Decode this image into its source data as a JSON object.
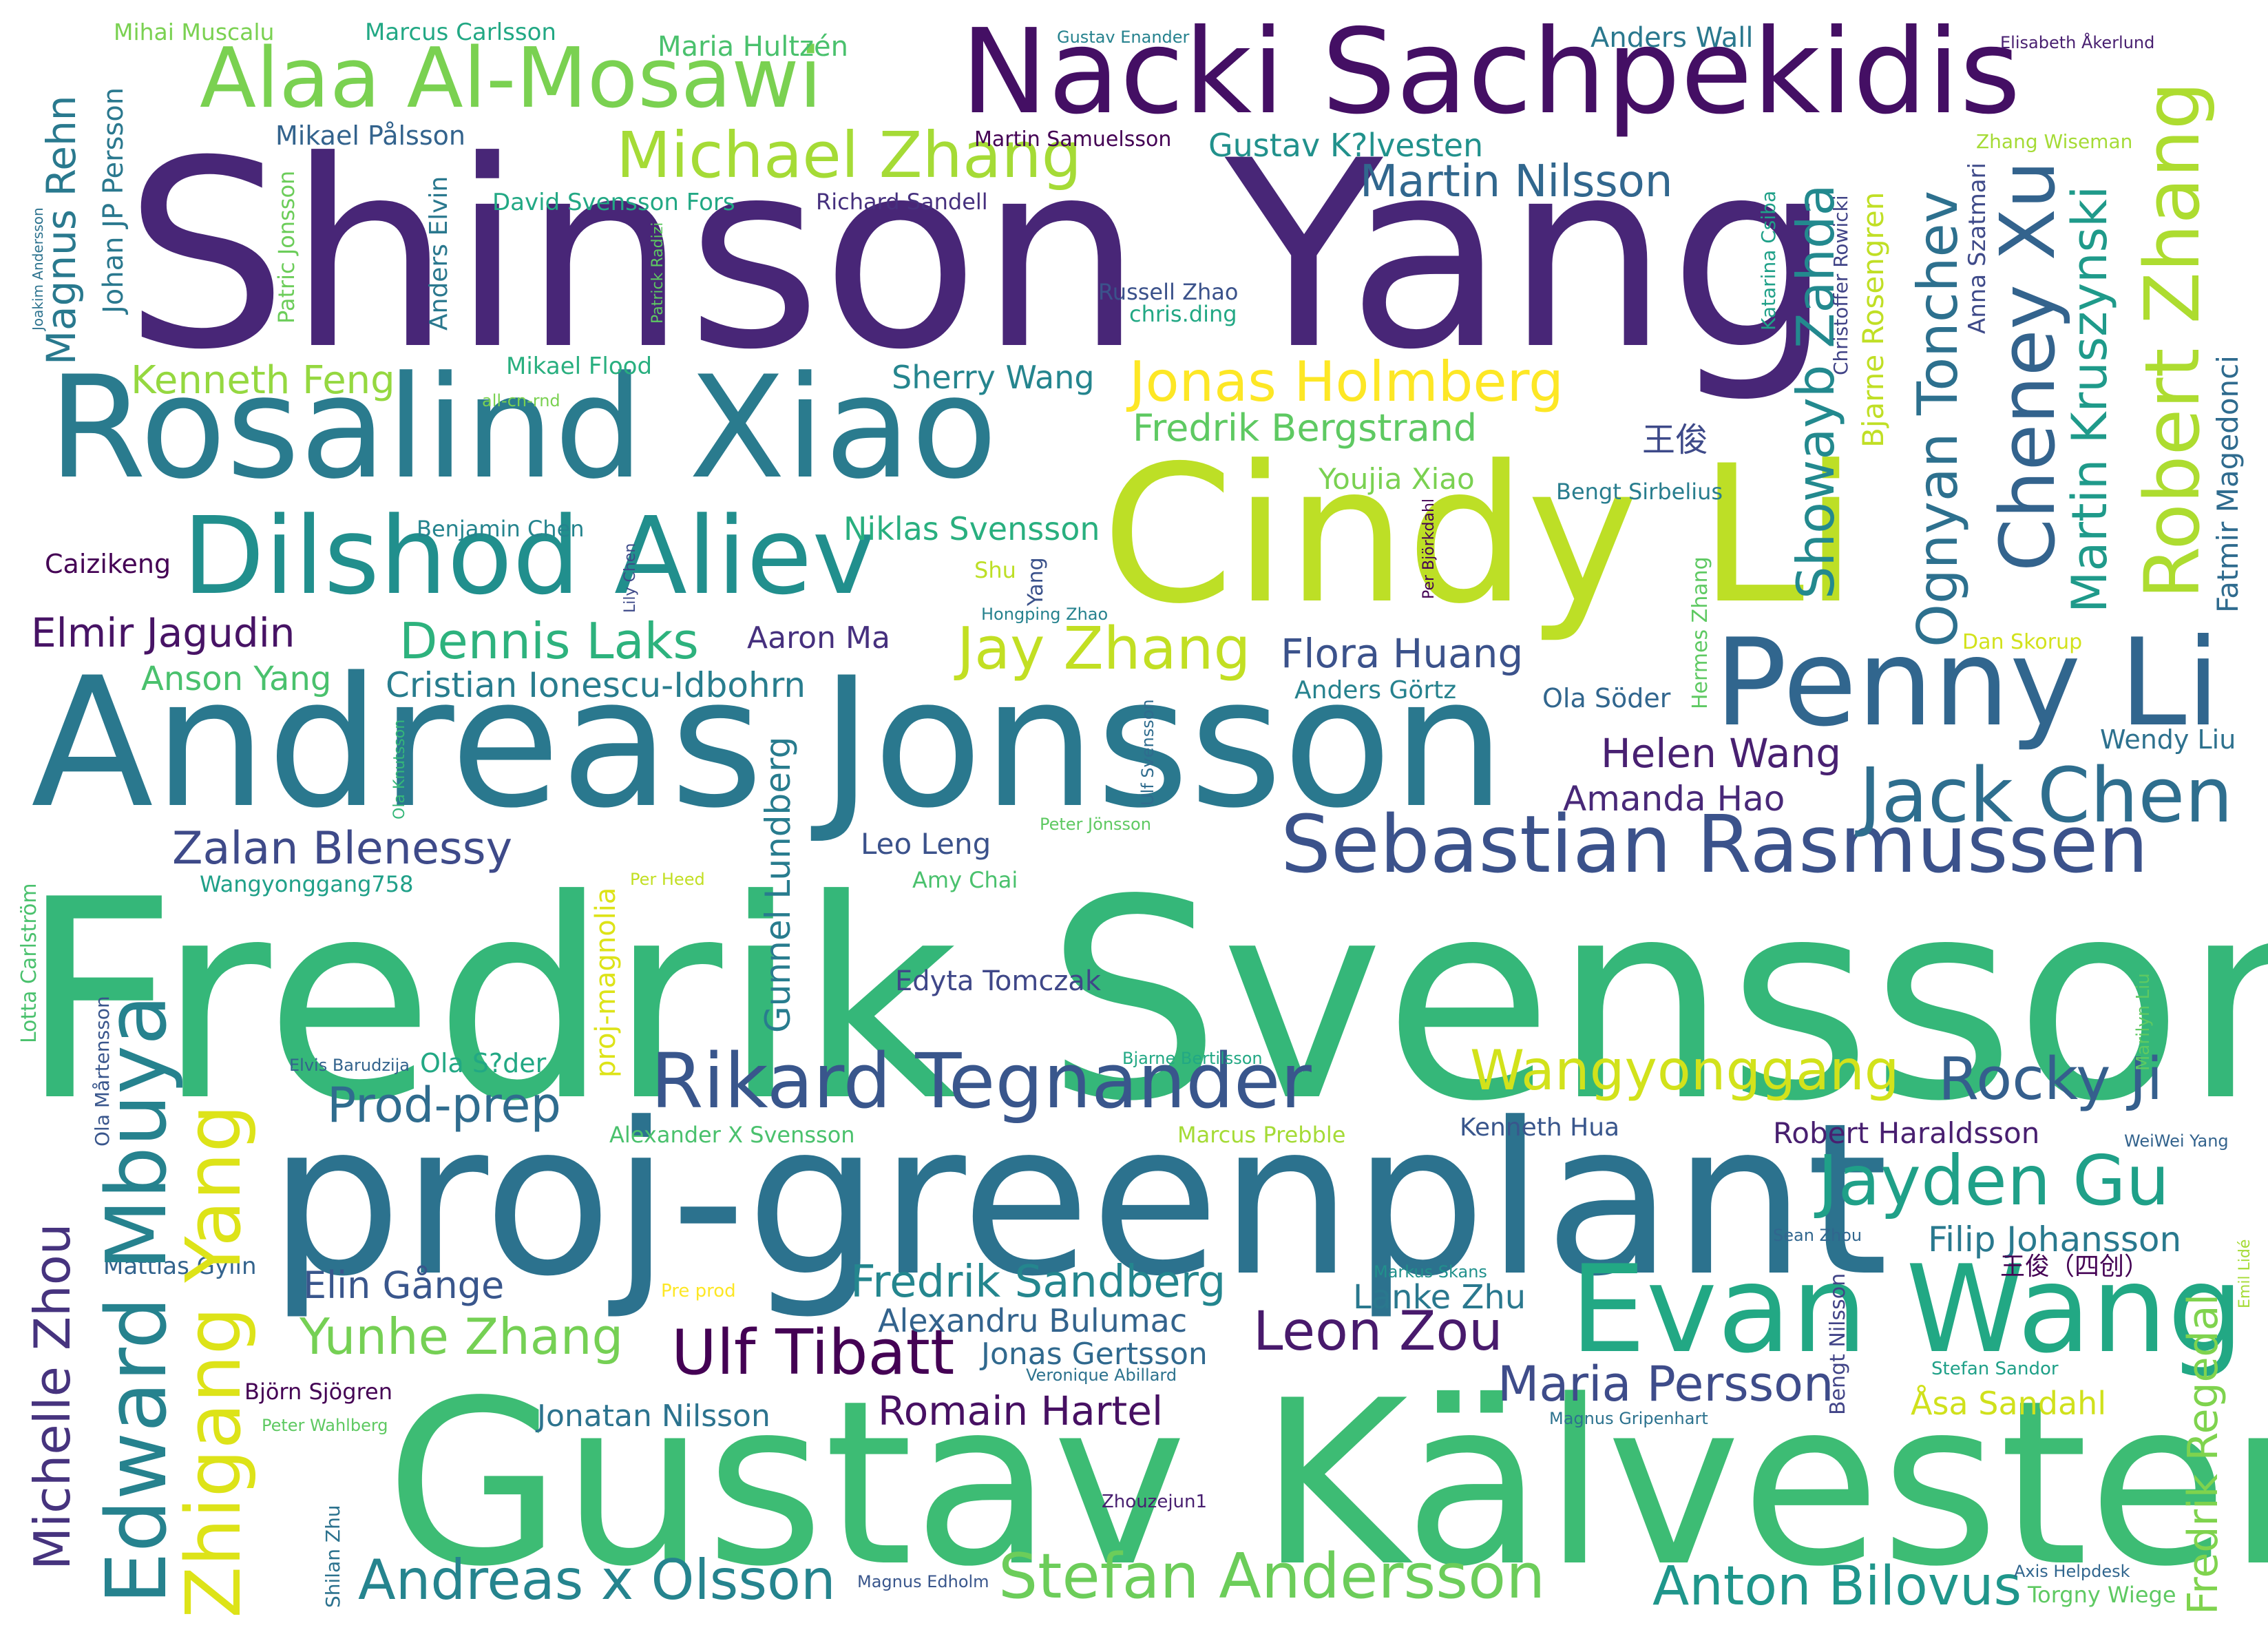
{
  "words": [
    {
      "text": "Fredrik Svensson",
      "weight": 100,
      "color": "#35b779",
      "vertical": false
    },
    {
      "text": "Shinson Yang",
      "weight": 98,
      "color": "#482677",
      "vertical": false
    },
    {
      "text": "Gustav Kälvesten",
      "weight": 97,
      "color": "#3dbc74",
      "vertical": false
    },
    {
      "text": "proj-greenplant",
      "weight": 96,
      "color": "#2c728e",
      "vertical": false
    },
    {
      "text": "Andreas Jonsson",
      "weight": 95,
      "color": "#2a788e",
      "vertical": false
    },
    {
      "text": "Cindy Li",
      "weight": 94,
      "color": "#bddf26",
      "vertical": false
    },
    {
      "text": "Rosalind Xiao",
      "weight": 93,
      "color": "#2a7b8e",
      "vertical": false
    },
    {
      "text": "Nacki Sachpekidis",
      "weight": 90,
      "color": "#440f64",
      "vertical": false
    },
    {
      "text": "Evan Wang",
      "weight": 89,
      "color": "#22a884",
      "vertical": false
    },
    {
      "text": "Penny Li",
      "weight": 88,
      "color": "#31668e",
      "vertical": false
    },
    {
      "text": "Dilshod Aliev",
      "weight": 86,
      "color": "#218f8d",
      "vertical": false
    },
    {
      "text": "Sebastian Rasmussen",
      "weight": 84,
      "color": "#3b528b",
      "vertical": false
    },
    {
      "text": "Rikard Tegnander",
      "weight": 82,
      "color": "#39568c",
      "vertical": false
    },
    {
      "text": "Alaa Al-Mosawi",
      "weight": 81,
      "color": "#7ad151",
      "vertical": false
    },
    {
      "text": "Edward Mbuya",
      "weight": 80,
      "color": "#26828e",
      "vertical": true
    },
    {
      "text": "Zhigang Yang",
      "weight": 79,
      "color": "#dde318",
      "vertical": true
    },
    {
      "text": "Jack Chen",
      "weight": 78,
      "color": "#2e6e8e",
      "vertical": false
    },
    {
      "text": "Robert Zhang",
      "weight": 77,
      "color": "#addc30",
      "vertical": true
    },
    {
      "text": "Cheney Xu",
      "weight": 76,
      "color": "#33638d",
      "vertical": true
    },
    {
      "text": "Jayden Gu",
      "weight": 75,
      "color": "#1fa088",
      "vertical": false
    },
    {
      "text": "Ulf Tibatt",
      "weight": 74,
      "color": "#440154",
      "vertical": false
    },
    {
      "text": "Michael Zhang",
      "weight": 73,
      "color": "#a5db36",
      "vertical": false
    },
    {
      "text": "Stefan Andersson",
      "weight": 72,
      "color": "#6ccd5a",
      "vertical": false
    },
    {
      "text": "Michelle Zhou",
      "weight": 71,
      "color": "#46337e",
      "vertical": true
    },
    {
      "text": "Rocky Ji",
      "weight": 70,
      "color": "#355f8d",
      "vertical": false
    },
    {
      "text": "Ognyan Tonchev",
      "weight": 69,
      "color": "#2d708e",
      "vertical": true
    },
    {
      "text": "Jay Zhang",
      "weight": 68,
      "color": "#c2df23",
      "vertical": false
    },
    {
      "text": "Wangyonggang",
      "weight": 67,
      "color": "#d2e21b",
      "vertical": false
    },
    {
      "text": "Jonas Holmberg",
      "weight": 66,
      "color": "#fde725",
      "vertical": false
    },
    {
      "text": "Showayb Zahda",
      "weight": 65,
      "color": "#23898e",
      "vertical": true
    },
    {
      "text": "Leon Zou",
      "weight": 64,
      "color": "#481a6c",
      "vertical": false
    },
    {
      "text": "Andreas x Olsson",
      "weight": 63,
      "color": "#25848e",
      "vertical": false
    },
    {
      "text": "Anton Bilovus",
      "weight": 62,
      "color": "#1f968b",
      "vertical": false
    },
    {
      "text": "Martin Kruszynski",
      "weight": 61,
      "color": "#1f9a8a",
      "vertical": true
    },
    {
      "text": "Yunhe Zhang",
      "weight": 60,
      "color": "#75d054",
      "vertical": false
    },
    {
      "text": "Dennis Laks",
      "weight": 59,
      "color": "#2db27d",
      "vertical": false
    },
    {
      "text": "Fredrik Sandberg",
      "weight": 58,
      "color": "#24868e",
      "vertical": false
    },
    {
      "text": "Maria Persson",
      "weight": 57,
      "color": "#3e4c8a",
      "vertical": false
    },
    {
      "text": "Martin Nilsson",
      "weight": 56,
      "color": "#31678e",
      "vertical": false
    },
    {
      "text": "Zalan Blenessy",
      "weight": 55,
      "color": "#3e4a89",
      "vertical": false
    },
    {
      "text": "Romain Hartel",
      "weight": 54,
      "color": "#471063",
      "vertical": false
    },
    {
      "text": "Prod-prep",
      "weight": 53,
      "color": "#2f6c8e",
      "vertical": false
    },
    {
      "text": "Fredrik Regedal",
      "weight": 52,
      "color": "#7fd34e",
      "vertical": true
    },
    {
      "text": "Gunnel Lundberg",
      "weight": 51,
      "color": "#287c8e",
      "vertical": true
    },
    {
      "text": "Fredrik Bergstrand",
      "weight": 50,
      "color": "#5ec962",
      "vertical": false
    },
    {
      "text": "Helen Wang",
      "weight": 49,
      "color": "#482071",
      "vertical": false
    },
    {
      "text": "Elmir Jagudin",
      "weight": 48,
      "color": "#471365",
      "vertical": false
    },
    {
      "text": "Flora Huang",
      "weight": 47,
      "color": "#3b528b",
      "vertical": false
    },
    {
      "text": "Kenneth Feng",
      "weight": 46,
      "color": "#95d840",
      "vertical": false
    },
    {
      "text": "Magnus Rehn",
      "weight": 45,
      "color": "#29798e",
      "vertical": true
    },
    {
      "text": "Amanda Hao",
      "weight": 44,
      "color": "#482878",
      "vertical": false
    },
    {
      "text": "Elin Gånge",
      "weight": 43,
      "color": "#39568c",
      "vertical": false
    },
    {
      "text": "Cristian Ionescu-Idbohrn",
      "weight": 42,
      "color": "#287d8e",
      "vertical": false
    },
    {
      "text": "Gustav K?lvesten",
      "weight": 41,
      "color": "#21918c",
      "vertical": false
    },
    {
      "text": "Filip Johansson",
      "weight": 40,
      "color": "#29798e",
      "vertical": false
    },
    {
      "text": "Anson Yang",
      "weight": 39,
      "color": "#4ac16d",
      "vertical": false
    },
    {
      "text": "Niklas Svensson",
      "weight": 38,
      "color": "#29af7f",
      "vertical": false
    },
    {
      "text": "Lanke Zhu",
      "weight": 37,
      "color": "#2a788e",
      "vertical": false
    },
    {
      "text": "Alexandru Bulumac",
      "weight": 36,
      "color": "#33638d",
      "vertical": false
    },
    {
      "text": "Jonatan Nilsson",
      "weight": 35,
      "color": "#2c738e",
      "vertical": false
    },
    {
      "text": "Åsa Sandahl",
      "weight": 34,
      "color": "#d0e11c",
      "vertical": false
    },
    {
      "text": "Sherry Wang",
      "weight": 34,
      "color": "#25858e",
      "vertical": false
    },
    {
      "text": "Jonas Gertsson",
      "weight": 33,
      "color": "#30698e",
      "vertical": false
    },
    {
      "text": "Bjarne Rosengren",
      "weight": 33,
      "color": "#c0df25",
      "vertical": true
    },
    {
      "text": "Fatmir Magedonci",
      "weight": 33,
      "color": "#2f6b8e",
      "vertical": true
    },
    {
      "text": "Aaron Ma",
      "weight": 32,
      "color": "#46307e",
      "vertical": false
    },
    {
      "text": "Leo Leng",
      "weight": 32,
      "color": "#3b528b",
      "vertical": false
    },
    {
      "text": "Robert Haraldsson",
      "weight": 32,
      "color": "#481f70",
      "vertical": false
    },
    {
      "text": "Youjia Xiao",
      "weight": 32,
      "color": "#7ad151",
      "vertical": false
    },
    {
      "text": "王俊",
      "weight": 32,
      "color": "#3e4a89",
      "vertical": false
    },
    {
      "text": "Johan JP Persson",
      "weight": 30,
      "color": "#2a788e",
      "vertical": true
    },
    {
      "text": "Mattias Gylin",
      "weight": 29,
      "color": "#33638d",
      "vertical": false
    },
    {
      "text": "Edyta Tomczak",
      "weight": 29,
      "color": "#3f4788",
      "vertical": false
    },
    {
      "text": "Wendy Liu",
      "weight": 29,
      "color": "#2d718e",
      "vertical": false
    },
    {
      "text": "Ola Söder",
      "weight": 29,
      "color": "#31668e",
      "vertical": false
    },
    {
      "text": "Alaa",
      "weight": 0,
      "color": "#ffffff",
      "vertical": false,
      "hidden": true
    }
  ],
  "small_words": [
    {
      "text": "Mihai Muscalu",
      "color": "#7ad151"
    },
    {
      "text": "Marcus Carlsson",
      "color": "#22a884"
    },
    {
      "text": "Maria Hultzén",
      "color": "#4ac16d"
    },
    {
      "text": "Gustav Enander",
      "color": "#26828e"
    },
    {
      "text": "Anders Wall",
      "color": "#2a788e"
    },
    {
      "text": "Elisabeth Åkerlund",
      "color": "#481f70"
    },
    {
      "text": "Mikael Pålsson",
      "color": "#33638d"
    },
    {
      "text": "Martin Samuelsson",
      "color": "#440154"
    },
    {
      "text": "Zhang Wiseman",
      "color": "#a5db36"
    },
    {
      "text": "David Svensson Fors",
      "color": "#22a884"
    },
    {
      "text": "Richard Sandell",
      "color": "#46307e"
    },
    {
      "text": "Patric Jonsson",
      "color": "#6ccd5a"
    },
    {
      "text": "Anders Elvin",
      "color": "#2a788e"
    },
    {
      "text": "Joakim Andersson",
      "color": "#2c728e"
    },
    {
      "text": "Patrick Radizi",
      "color": "#5ec962"
    },
    {
      "text": "Russell Zhao",
      "color": "#3b528b"
    },
    {
      "text": "chris.ding",
      "color": "#22a884"
    },
    {
      "text": "Katarina Csiba",
      "color": "#1fa088"
    },
    {
      "text": "Christoffer Rowicki",
      "color": "#414487"
    },
    {
      "text": "Anna Szatmari",
      "color": "#3e4a89"
    },
    {
      "text": "Mikael Flood",
      "color": "#29af7f"
    },
    {
      "text": "all-cn-rnd",
      "color": "#7ad151"
    },
    {
      "text": "Bengt Sirbelius",
      "color": "#287d8e"
    },
    {
      "text": "Benjamin Chen",
      "color": "#25848e"
    },
    {
      "text": "Caizikeng",
      "color": "#440154"
    },
    {
      "text": "Lily Chen",
      "color": "#3e4a89"
    },
    {
      "text": "Shu",
      "color": "#bddf26"
    },
    {
      "text": "Yang",
      "color": "#3b528b"
    },
    {
      "text": "Per Björkdahl",
      "color": "#440154"
    },
    {
      "text": "Hongping Zhao",
      "color": "#26828e"
    },
    {
      "text": "Hermes Zhang",
      "color": "#5ec962"
    },
    {
      "text": "Dan Skorup",
      "color": "#d2e21b"
    },
    {
      "text": "Anders Görtz",
      "color": "#26828e"
    },
    {
      "text": "Ola Knutsson",
      "color": "#35b779"
    },
    {
      "text": "Ulf Svensson",
      "color": "#2f6c8e"
    },
    {
      "text": "Peter Jönsson",
      "color": "#5ec962"
    },
    {
      "text": "Wangyonggang758",
      "color": "#1fa088"
    },
    {
      "text": "Lotta Carlström",
      "color": "#4ac16d"
    },
    {
      "text": "Per Heed",
      "color": "#c2df23"
    },
    {
      "text": "proj-magnolia",
      "color": "#dde318"
    },
    {
      "text": "Amy Chai",
      "color": "#4ac16d"
    },
    {
      "text": "Marilyn Liu",
      "color": "#5ec962"
    },
    {
      "text": "Ola Mårtensson",
      "color": "#39568c"
    },
    {
      "text": "Elvis Barudzija",
      "color": "#33638d"
    },
    {
      "text": "Ola S?der",
      "color": "#22a884"
    },
    {
      "text": "Bjarne Bertilsson",
      "color": "#22a884"
    },
    {
      "text": "Alexander X Svensson",
      "color": "#4ac16d"
    },
    {
      "text": "Marcus Prebble",
      "color": "#a5db36"
    },
    {
      "text": "Kenneth Hua",
      "color": "#39568c"
    },
    {
      "text": "WeiWei Yang",
      "color": "#33638d"
    },
    {
      "text": "Sean Zhou",
      "color": "#31668e"
    },
    {
      "text": "Markus Skans",
      "color": "#21918c"
    },
    {
      "text": "Pre prod",
      "color": "#fde725"
    },
    {
      "text": "王俊（四创）",
      "color": "#440154"
    },
    {
      "text": "Emil Lidé",
      "color": "#a5db36"
    },
    {
      "text": "Veronique Abillard",
      "color": "#2c728e"
    },
    {
      "text": "Stefan Sandor",
      "color": "#1fa088"
    },
    {
      "text": "Björn Sjögren",
      "color": "#440154"
    },
    {
      "text": "Peter Wahlberg",
      "color": "#5ec962"
    },
    {
      "text": "Magnus Gripenhart",
      "color": "#2c728e"
    },
    {
      "text": "Bengt Nilsson",
      "color": "#414487"
    },
    {
      "text": "Zhouzejun1",
      "color": "#481f70"
    },
    {
      "text": "Shilan Zhu",
      "color": "#2c728e"
    },
    {
      "text": "Magnus Edholm",
      "color": "#39568c"
    },
    {
      "text": "Axis Helpdesk",
      "color": "#31668e"
    },
    {
      "text": "Torgny Wiege",
      "color": "#5ec962"
    }
  ]
}
